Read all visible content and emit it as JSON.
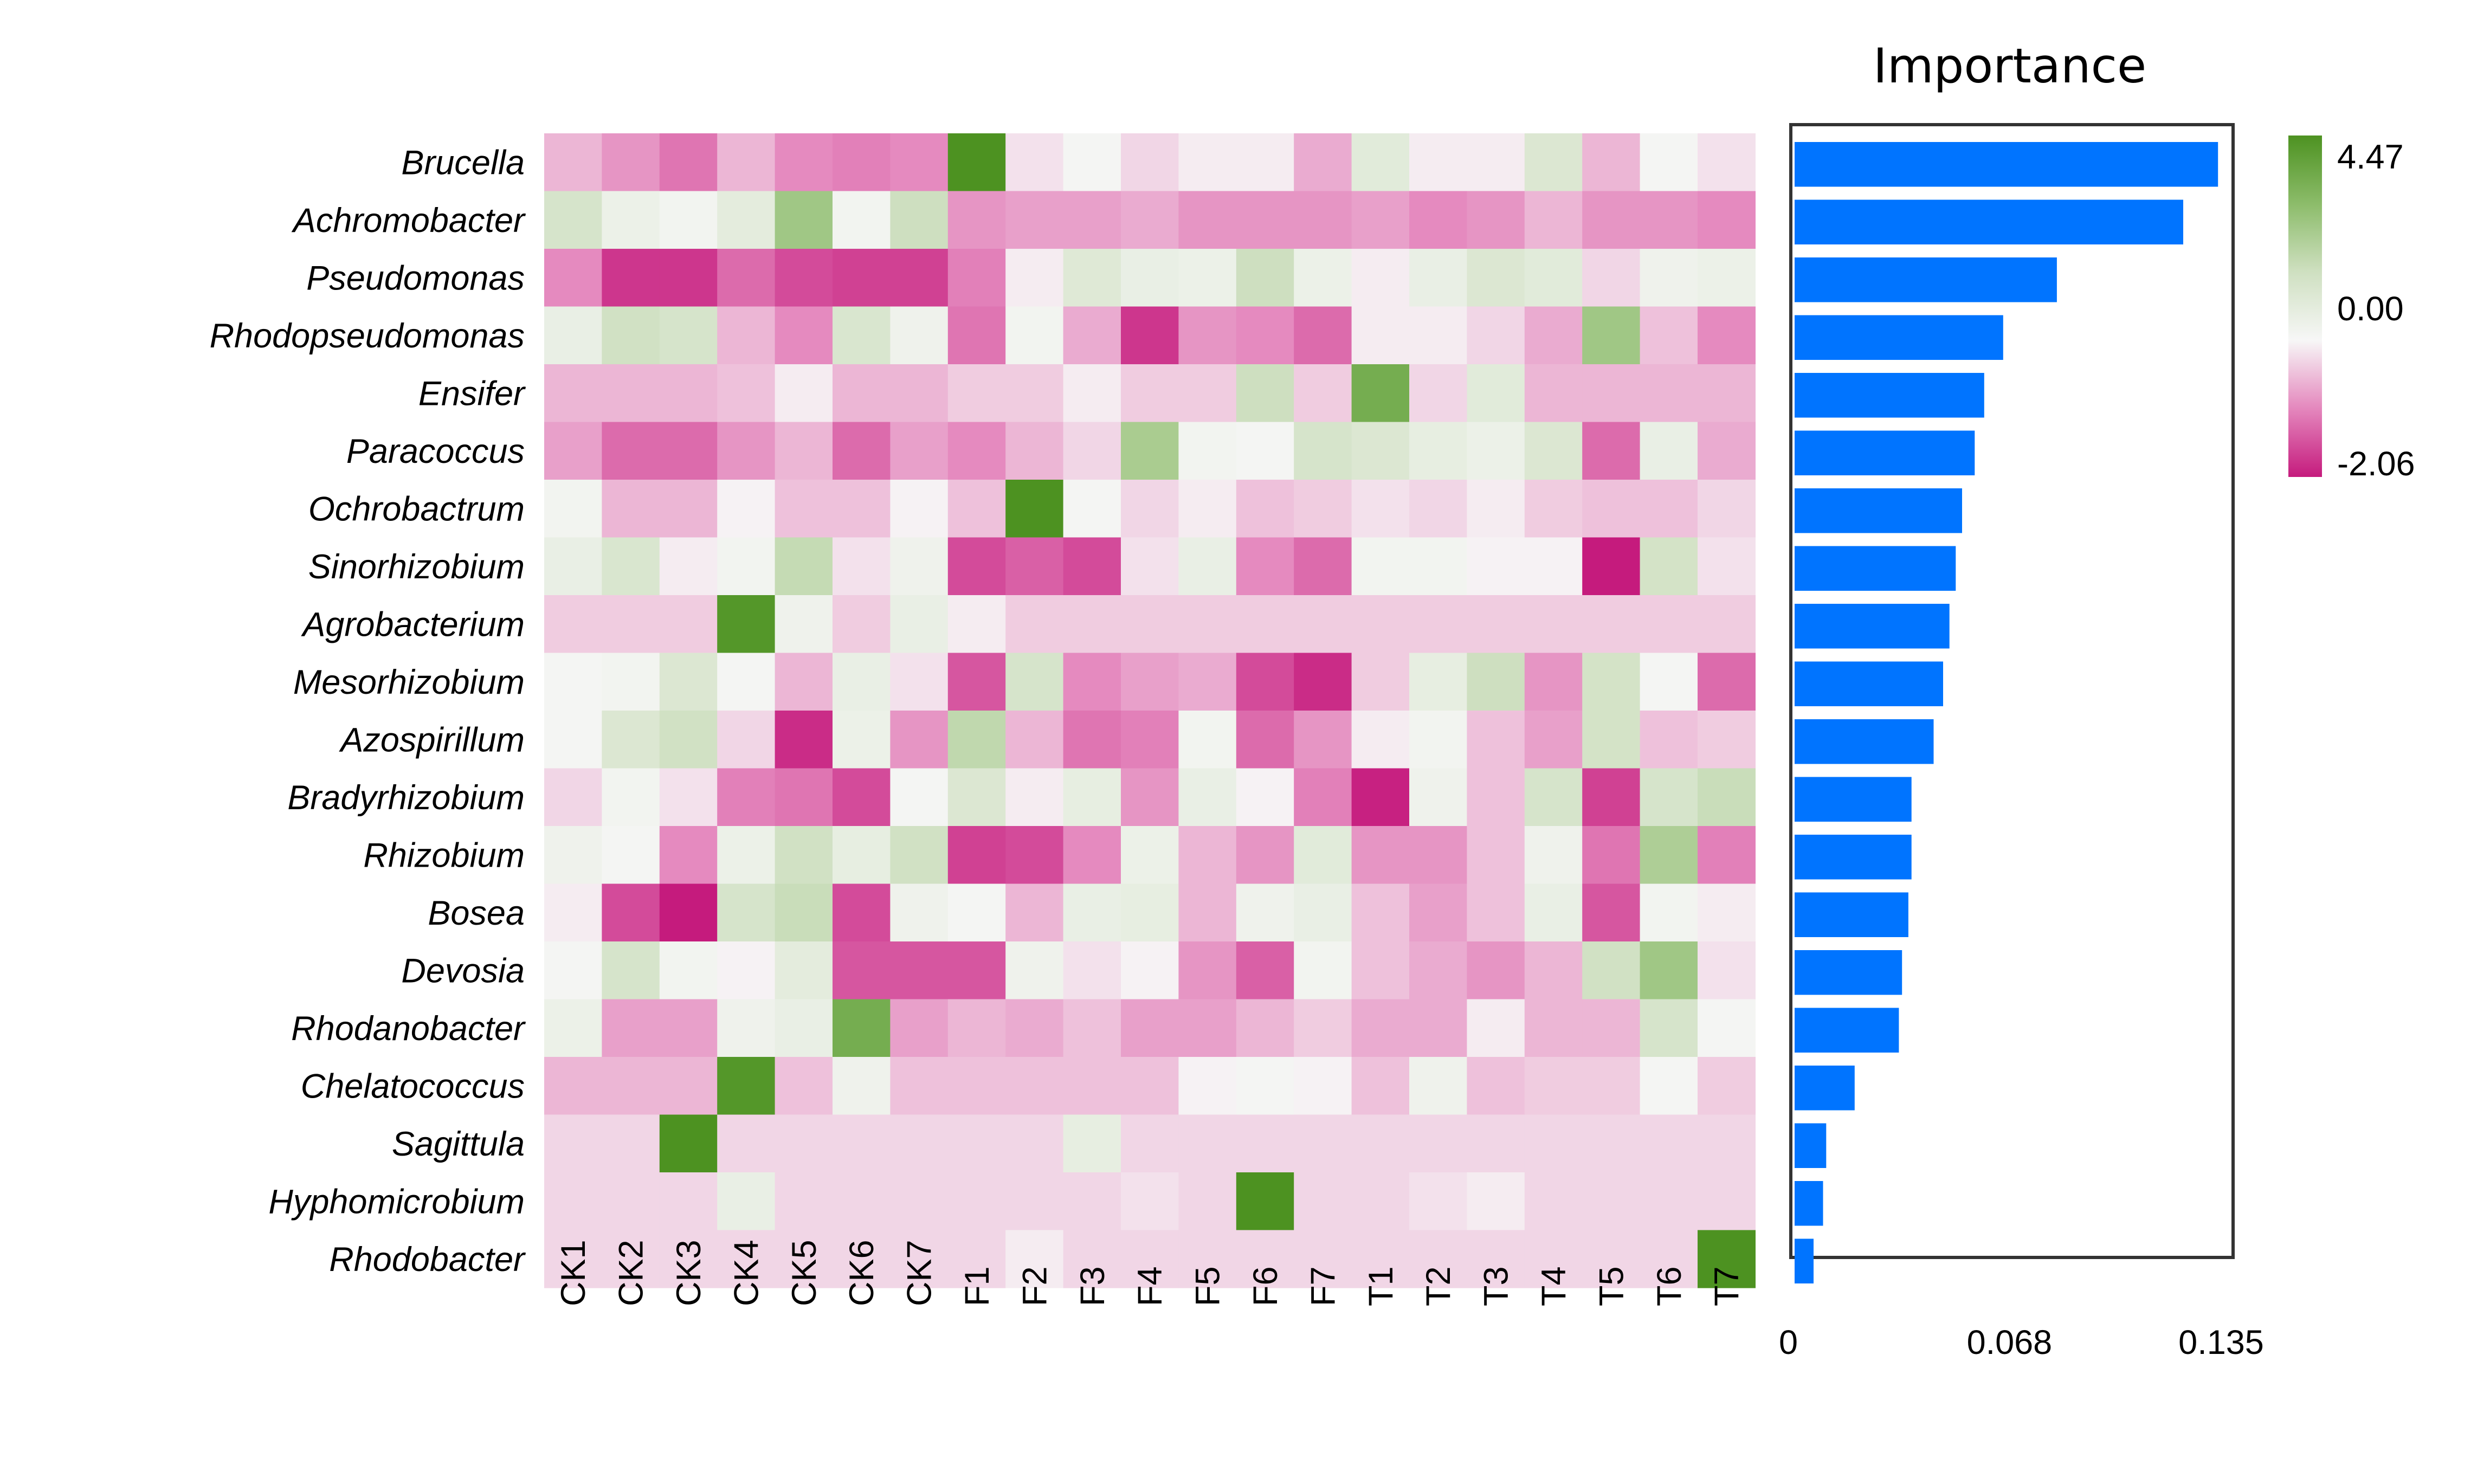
{
  "chart_data": [
    {
      "type": "heatmap",
      "rows": [
        "Brucella",
        "Achromobacter",
        "Pseudomonas",
        "Rhodopseudomonas",
        "Ensifer",
        "Paracoccus",
        "Ochrobactrum",
        "Sinorhizobium",
        "Agrobacterium",
        "Mesorhizobium",
        "Azospirillum",
        "Bradyrhizobium",
        "Rhizobium",
        "Bosea",
        "Devosia",
        "Rhodanobacter",
        "Chelatococcus",
        "Sagittula",
        "Hyphomicrobium",
        "Rhodobacter"
      ],
      "columns": [
        "CK1",
        "CK2",
        "CK3",
        "CK4",
        "CK5",
        "CK6",
        "CK7",
        "F1",
        "F2",
        "F3",
        "F4",
        "F5",
        "F6",
        "F7",
        "T1",
        "T2",
        "T3",
        "T4",
        "T5",
        "T6",
        "T7"
      ],
      "values": [
        [
          -0.6,
          -0.9,
          -1.2,
          -0.6,
          -1.0,
          -1.1,
          -1.0,
          4.47,
          -0.2,
          0.1,
          -0.3,
          -0.1,
          -0.1,
          -0.7,
          0.8,
          -0.1,
          -0.1,
          1.0,
          -0.6,
          0.1,
          -0.2
        ],
        [
          1.2,
          0.4,
          0.2,
          0.7,
          2.5,
          0.2,
          1.5,
          -0.9,
          -0.8,
          -0.8,
          -0.7,
          -0.9,
          -0.9,
          -0.9,
          -0.8,
          -1.0,
          -0.9,
          -0.6,
          -0.9,
          -0.9,
          -1.0
        ],
        [
          -1.0,
          -1.8,
          -1.8,
          -1.3,
          -1.6,
          -1.7,
          -1.7,
          -1.1,
          -0.1,
          0.9,
          0.5,
          0.4,
          1.5,
          0.4,
          -0.1,
          0.5,
          1.0,
          0.8,
          -0.3,
          0.3,
          0.4
        ],
        [
          0.5,
          1.4,
          1.2,
          -0.6,
          -1.0,
          1.1,
          0.3,
          -1.2,
          0.2,
          -0.7,
          -1.8,
          -0.9,
          -1.0,
          -1.3,
          -0.1,
          -0.1,
          -0.3,
          -0.7,
          2.5,
          -0.5,
          -1.0
        ],
        [
          -0.6,
          -0.6,
          -0.6,
          -0.5,
          -0.1,
          -0.6,
          -0.6,
          -0.4,
          -0.4,
          -0.1,
          -0.4,
          -0.4,
          1.5,
          -0.4,
          3.5,
          -0.3,
          0.8,
          -0.6,
          -0.6,
          -0.6,
          -0.6
        ],
        [
          -0.8,
          -1.3,
          -1.3,
          -0.9,
          -0.6,
          -1.3,
          -0.8,
          -1.0,
          -0.6,
          -0.3,
          2.3,
          0.2,
          0.1,
          1.2,
          1.0,
          0.6,
          0.4,
          1.0,
          -1.3,
          0.5,
          -0.7
        ],
        [
          0.2,
          -0.6,
          -0.6,
          -0.05,
          -0.5,
          -0.5,
          -0.05,
          -0.5,
          4.47,
          0.1,
          -0.3,
          -0.1,
          -0.5,
          -0.4,
          -0.2,
          -0.3,
          -0.1,
          -0.4,
          -0.5,
          -0.5,
          -0.3
        ],
        [
          0.5,
          1.1,
          -0.1,
          0.2,
          1.7,
          -0.2,
          0.3,
          -1.6,
          -1.4,
          -1.6,
          -0.2,
          0.5,
          -1.0,
          -1.3,
          0.2,
          0.2,
          -0.05,
          -0.05,
          -2.06,
          1.3,
          -0.2
        ],
        [
          -0.4,
          -0.4,
          -0.4,
          4.3,
          0.3,
          -0.4,
          0.5,
          -0.1,
          -0.4,
          -0.4,
          -0.4,
          -0.4,
          -0.4,
          -0.4,
          -0.4,
          -0.4,
          -0.4,
          -0.4,
          -0.4,
          -0.4,
          -0.4
        ],
        [
          0.1,
          0.2,
          1.0,
          0.1,
          -0.6,
          0.5,
          -0.2,
          -1.5,
          1.2,
          -1.0,
          -0.8,
          -0.7,
          -1.6,
          -1.9,
          -0.4,
          0.6,
          1.5,
          -0.9,
          1.3,
          0.1,
          -1.3
        ],
        [
          0.1,
          1.0,
          1.4,
          -0.3,
          -1.9,
          0.4,
          -0.9,
          1.8,
          -0.6,
          -1.2,
          -1.1,
          0.2,
          -1.3,
          -0.9,
          -0.1,
          0.2,
          -0.5,
          -0.8,
          1.3,
          -0.5,
          -0.4
        ],
        [
          -0.3,
          0.2,
          -0.2,
          -1.1,
          -1.2,
          -1.6,
          0.1,
          1.0,
          -0.1,
          0.6,
          -0.9,
          0.5,
          -0.05,
          -1.1,
          -2.0,
          0.3,
          -0.5,
          1.2,
          -1.7,
          1.2,
          1.6
        ],
        [
          0.3,
          0.1,
          -1.0,
          0.4,
          1.4,
          0.6,
          1.4,
          -1.7,
          -1.6,
          -1.0,
          0.4,
          -0.6,
          -0.9,
          0.8,
          -0.9,
          -0.9,
          -0.5,
          0.3,
          -1.2,
          2.2,
          -1.1
        ],
        [
          -0.1,
          -1.6,
          -2.06,
          1.2,
          1.6,
          -1.6,
          0.3,
          0.1,
          -0.6,
          0.5,
          0.6,
          -0.6,
          0.3,
          0.5,
          -0.5,
          -0.8,
          -0.5,
          0.5,
          -1.5,
          0.2,
          -0.1
        ],
        [
          0.1,
          1.2,
          0.2,
          -0.05,
          0.7,
          -1.5,
          -1.5,
          -1.5,
          0.3,
          -0.2,
          -0.05,
          -0.9,
          -1.4,
          0.2,
          -0.5,
          -0.7,
          -0.9,
          -0.6,
          1.4,
          2.5,
          -0.2
        ],
        [
          0.4,
          -0.8,
          -0.8,
          0.3,
          0.5,
          3.5,
          -0.8,
          -0.6,
          -0.7,
          -0.5,
          -0.8,
          -0.8,
          -0.6,
          -0.4,
          -0.7,
          -0.7,
          -0.1,
          -0.6,
          -0.6,
          1.2,
          0.1
        ],
        [
          -0.6,
          -0.6,
          -0.6,
          4.3,
          -0.5,
          0.3,
          -0.5,
          -0.5,
          -0.5,
          -0.5,
          -0.5,
          -0.05,
          0.1,
          -0.05,
          -0.5,
          0.3,
          -0.5,
          -0.4,
          -0.4,
          0.1,
          -0.4
        ],
        [
          -0.3,
          -0.3,
          4.47,
          -0.3,
          -0.3,
          -0.3,
          -0.3,
          -0.3,
          -0.3,
          0.6,
          -0.3,
          -0.3,
          -0.3,
          -0.3,
          -0.3,
          -0.3,
          -0.3,
          -0.3,
          -0.3,
          -0.3,
          -0.3
        ],
        [
          -0.3,
          -0.3,
          -0.3,
          0.5,
          -0.3,
          -0.3,
          -0.3,
          -0.3,
          -0.3,
          -0.3,
          -0.2,
          -0.3,
          4.47,
          -0.3,
          -0.3,
          -0.2,
          -0.1,
          -0.3,
          -0.3,
          -0.3,
          -0.3
        ],
        [
          -0.3,
          -0.3,
          -0.3,
          -0.3,
          -0.3,
          -0.3,
          -0.3,
          -0.3,
          -0.1,
          -0.3,
          -0.3,
          -0.3,
          -0.3,
          -0.3,
          -0.3,
          -0.3,
          -0.3,
          -0.3,
          -0.3,
          -0.3,
          4.47
        ]
      ],
      "colorbar": {
        "min": -2.06,
        "mid": 0.0,
        "max": 4.47,
        "tick_labels": [
          "4.47",
          "0.00",
          "-2.06"
        ],
        "colors": {
          "low": "#c51b7d",
          "mid": "#f7f7f7",
          "high": "#4d9221"
        }
      }
    },
    {
      "type": "bar",
      "orientation": "horizontal",
      "title": "Importance",
      "categories": [
        "Brucella",
        "Achromobacter",
        "Pseudomonas",
        "Rhodopseudomonas",
        "Ensifer",
        "Paracoccus",
        "Ochrobactrum",
        "Sinorhizobium",
        "Agrobacterium",
        "Mesorhizobium",
        "Azospirillum",
        "Bradyrhizobium",
        "Rhizobium",
        "Bosea",
        "Devosia",
        "Rhodanobacter",
        "Chelatococcus",
        "Sagittula",
        "Hyphomicrobium",
        "Rhodobacter"
      ],
      "values": [
        0.134,
        0.123,
        0.083,
        0.066,
        0.06,
        0.057,
        0.053,
        0.051,
        0.049,
        0.047,
        0.044,
        0.037,
        0.037,
        0.036,
        0.034,
        0.033,
        0.019,
        0.01,
        0.009,
        0.006
      ],
      "xlim": [
        0,
        0.135
      ],
      "xticks": [
        0,
        0.068,
        0.135
      ],
      "xtick_labels": [
        "0",
        "0.068",
        "0.135"
      ],
      "bar_color": "#0074ff",
      "frame_color": "#333333"
    }
  ]
}
